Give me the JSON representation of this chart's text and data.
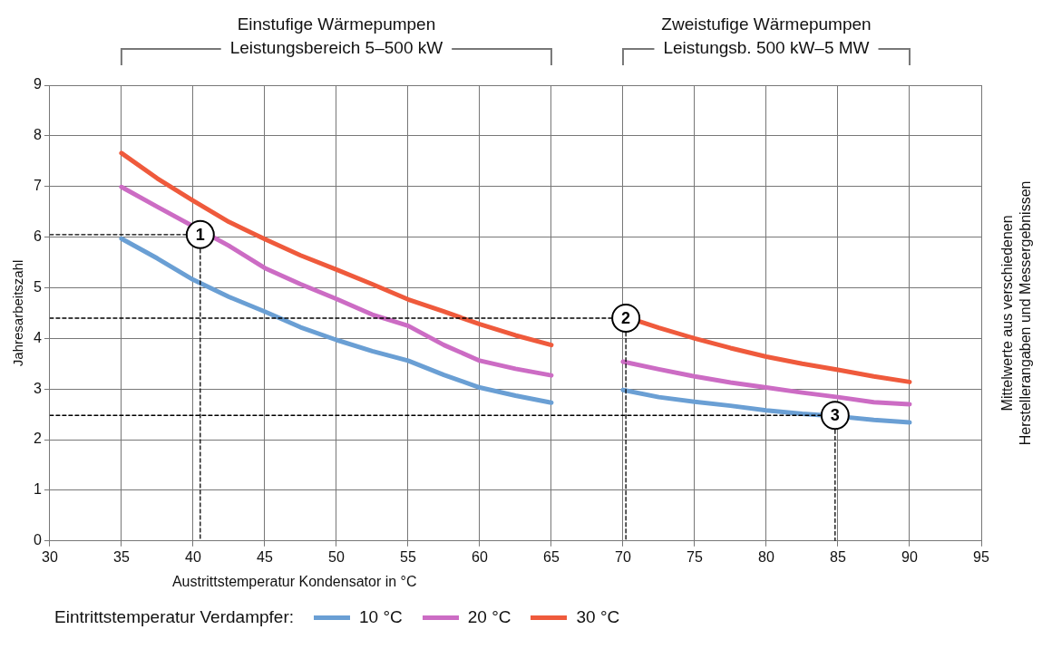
{
  "chart_data": {
    "type": "line",
    "ylabel": "Jahresarbeitszahl",
    "xlabel": "Austrittstemperatur Kondensator in °C",
    "legend_title": "Eintrittstemperatur Verdampfer:",
    "x": [
      35,
      37.5,
      40,
      42.5,
      45,
      47.5,
      50,
      52.5,
      55,
      57.5,
      60,
      62.5,
      65,
      67.5,
      70,
      72.5,
      75,
      77.5,
      80,
      82.5,
      85,
      87.5,
      90
    ],
    "series": [
      {
        "type": "line",
        "line_style": "dashed",
        "color": "#000000",
        "x": [
          30,
          40.5,
          40.5
        ],
        "values": [
          6.05,
          6.05,
          0
        ]
      },
      {
        "type": "line",
        "line_style": "dashed",
        "color": "#000000",
        "x": [
          30,
          70.2,
          70.2
        ],
        "values": [
          4.4,
          4.4,
          0
        ]
      },
      {
        "type": "line",
        "line_style": "dashed",
        "color": "#000000",
        "x": [
          30,
          84.8,
          84.8
        ],
        "values": [
          2.48,
          2.48,
          0
        ]
      },
      {
        "name": "10 °C",
        "color": "#6a9fd4",
        "values": [
          5.97,
          5.58,
          5.16,
          4.82,
          4.53,
          4.22,
          3.97,
          3.75,
          3.56,
          3.28,
          3.03,
          2.87,
          2.73,
          null,
          2.98,
          2.84,
          2.75,
          2.67,
          2.58,
          2.51,
          2.46,
          2.39,
          2.34
        ]
      },
      {
        "name": "20 °C",
        "color": "#cc6cc4",
        "x": [
          35,
          37.5,
          42.5,
          45,
          47.5,
          50,
          52.5,
          55,
          57.5,
          60,
          62.5,
          65,
          67.5,
          70,
          72.5,
          75,
          77.5,
          80,
          82.5,
          85,
          87.5,
          90
        ],
        "values": [
          6.99,
          6.6,
          5.83,
          5.39,
          5.07,
          4.78,
          4.47,
          4.25,
          3.87,
          3.56,
          3.4,
          3.27,
          null,
          3.54,
          3.39,
          3.25,
          3.13,
          3.03,
          2.93,
          2.84,
          2.74,
          2.7
        ]
      },
      {
        "name": "30 °C",
        "color": "#ef5a3c",
        "x": [
          35,
          37.5,
          40,
          42.5,
          45,
          47.5,
          50,
          52.5,
          55,
          57.5,
          60,
          62.5,
          65,
          67.5,
          71.2,
          72.5,
          75,
          77.5,
          80,
          82.5,
          85,
          87.5,
          90
        ],
        "values": [
          7.66,
          7.16,
          6.72,
          6.3,
          5.96,
          5.64,
          5.36,
          5.07,
          4.77,
          4.53,
          4.28,
          4.06,
          3.87,
          null,
          4.33,
          4.21,
          4.0,
          3.81,
          3.64,
          3.5,
          3.38,
          3.25,
          3.14
        ]
      }
    ],
    "xlim": [
      30,
      95
    ],
    "xticks": [
      30,
      35,
      40,
      45,
      50,
      55,
      60,
      65,
      70,
      75,
      80,
      85,
      90,
      95
    ],
    "ylim": [
      0,
      9
    ],
    "yticks": [
      0,
      1,
      2,
      3,
      4,
      5,
      6,
      7,
      8,
      9
    ],
    "grid": true,
    "legend": "bottom",
    "marker": "none",
    "line_style": "solid",
    "annotations": [
      {
        "text": "1",
        "x": 40.5,
        "y": 6.05
      },
      {
        "text": "2",
        "x": 70.2,
        "y": 4.4
      },
      {
        "text": "3",
        "x": 84.8,
        "y": 2.48
      },
      "Einstufige Wärmepumpen\nLeistungsbereich 5–500 kW",
      "Zweistufige Wärmepumpen\nLeistungsb. 500 kW–5 MW",
      "Mittelwerte aus verschiedenen\nHerstellerangaben und Messergebnissen"
    ]
  }
}
